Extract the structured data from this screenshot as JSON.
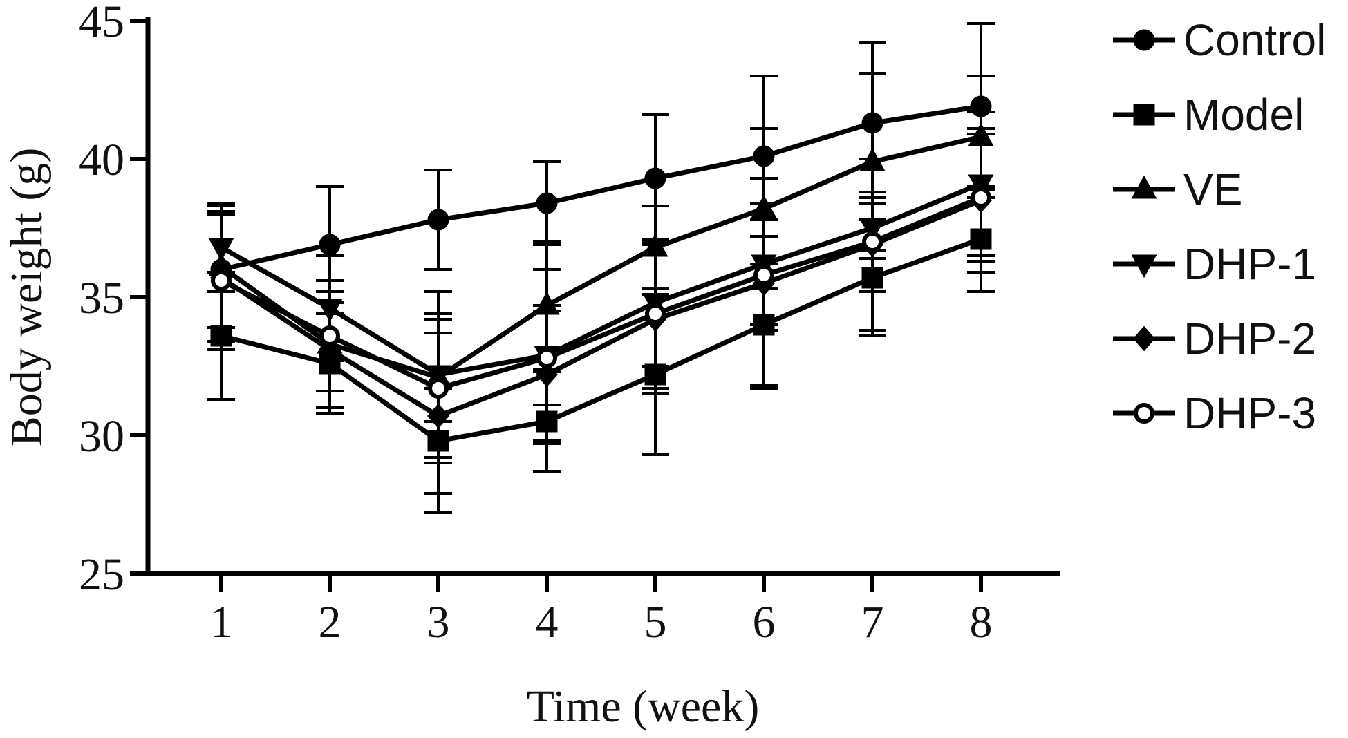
{
  "chart_data": {
    "type": "line",
    "title": "",
    "xlabel": "Time (week)",
    "ylabel": "Body weight (g)",
    "x": [
      1,
      2,
      3,
      4,
      5,
      6,
      7,
      8
    ],
    "x_tick_labels": [
      "1",
      "2",
      "3",
      "4",
      "5",
      "6",
      "7",
      "8"
    ],
    "y_ticks": [
      25,
      30,
      35,
      40,
      45
    ],
    "y_tick_labels": [
      "25",
      "30",
      "35",
      "40",
      "45"
    ],
    "ylim": [
      25,
      45
    ],
    "grid": false,
    "legend_position": "right",
    "color": "#000000",
    "series": [
      {
        "name": "Control",
        "marker": "circle-filled",
        "values": [
          36.0,
          36.9,
          37.8,
          38.4,
          39.3,
          40.1,
          41.3,
          41.9
        ],
        "errors": [
          2.1,
          2.1,
          1.8,
          1.5,
          2.3,
          2.9,
          2.9,
          3.0
        ]
      },
      {
        "name": "Model",
        "marker": "square-filled",
        "values": [
          33.6,
          32.6,
          29.8,
          30.5,
          32.2,
          34.0,
          35.7,
          37.1
        ],
        "errors": [
          2.3,
          1.8,
          1.9,
          1.8,
          2.9,
          2.2,
          2.1,
          1.9
        ]
      },
      {
        "name": "VE",
        "marker": "triangle-up-filled",
        "values": [
          36.1,
          33.3,
          32.1,
          34.7,
          36.8,
          38.2,
          39.9,
          40.8
        ],
        "errors": [
          2.2,
          2.3,
          1.6,
          2.3,
          1.5,
          2.9,
          3.2,
          2.2
        ]
      },
      {
        "name": "DHP-1",
        "marker": "triangle-down-filled",
        "values": [
          36.8,
          34.6,
          32.2,
          32.9,
          34.8,
          36.2,
          37.5,
          39.1
        ],
        "errors": [
          1.6,
          1.9,
          3.0,
          3.1,
          2.3,
          2.2,
          1.1,
          2.6
        ]
      },
      {
        "name": "DHP-2",
        "marker": "diamond-filled",
        "values": [
          35.7,
          33.1,
          30.7,
          32.2,
          34.2,
          35.5,
          36.9,
          38.5
        ],
        "errors": [
          2.3,
          2.1,
          3.5,
          2.5,
          2.7,
          3.8,
          3.1,
          2.6
        ]
      },
      {
        "name": "DHP-3",
        "marker": "circle-open",
        "values": [
          35.6,
          33.6,
          31.7,
          32.8,
          34.4,
          35.8,
          37.0,
          38.6
        ],
        "errors": [
          2.5,
          2.0,
          2.7,
          1.7,
          2.7,
          2.0,
          1.8,
          2.3
        ]
      }
    ]
  }
}
